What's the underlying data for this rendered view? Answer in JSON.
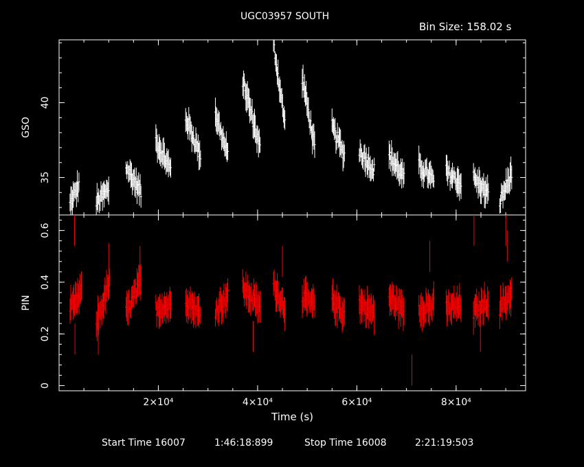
{
  "header": {
    "title": "UGC03957 SOUTH",
    "bin_size": "Bin Size: 158.02 s"
  },
  "footer": {
    "start_label": "Start Time 16007",
    "start_time": "1:46:18:899",
    "stop_label": "Stop Time 16008",
    "stop_time": "2:21:19:503"
  },
  "colors": {
    "background": "#000000",
    "axes": "#ffffff",
    "gso_series": "#ffffff",
    "pin_series": "#ff0000"
  },
  "chart_data": [
    {
      "type": "scatter",
      "name": "GSO",
      "ylabel": "GSO",
      "xlabel": "",
      "xlim": [
        0,
        94000
      ],
      "ylim": [
        32.5,
        44.2
      ],
      "yticks": [
        35,
        40
      ],
      "ytick_labels": [
        "35",
        "40"
      ],
      "xticks": [
        20000,
        40000,
        60000,
        80000
      ],
      "segments": [
        {
          "x": [
            2200,
            4000
          ],
          "y": [
            33.2,
            34.5
          ]
        },
        {
          "x": [
            7500,
            10000
          ],
          "y": [
            33.3,
            34.2
          ]
        },
        {
          "x": [
            13500,
            16500
          ],
          "y": [
            35.7,
            34.0
          ]
        },
        {
          "x": [
            19500,
            22500
          ],
          "y": [
            37.5,
            35.5
          ]
        },
        {
          "x": [
            25500,
            28500
          ],
          "y": [
            39.0,
            36.5
          ]
        },
        {
          "x": [
            31500,
            34000
          ],
          "y": [
            39.3,
            36.4
          ]
        },
        {
          "x": [
            37000,
            40500
          ],
          "y": [
            41.5,
            37.0
          ]
        },
        {
          "x": [
            43200,
            45500
          ],
          "y": [
            44.0,
            38.6
          ]
        },
        {
          "x": [
            49000,
            51500
          ],
          "y": [
            41.7,
            37.0
          ]
        },
        {
          "x": [
            55000,
            57500
          ],
          "y": [
            38.4,
            36.5
          ]
        },
        {
          "x": [
            60500,
            63500
          ],
          "y": [
            36.8,
            35.5
          ]
        },
        {
          "x": [
            66500,
            69500
          ],
          "y": [
            36.5,
            35.0
          ]
        },
        {
          "x": [
            72500,
            75500
          ],
          "y": [
            35.8,
            34.8
          ]
        },
        {
          "x": [
            78000,
            81000
          ],
          "y": [
            35.4,
            34.6
          ]
        },
        {
          "x": [
            83500,
            86500
          ],
          "y": [
            35.0,
            33.8
          ]
        },
        {
          "x": [
            88800,
            91200
          ],
          "y": [
            33.4,
            35.3
          ]
        }
      ]
    },
    {
      "type": "scatter",
      "name": "PIN",
      "ylabel": "PIN",
      "xlabel": "Time (s)",
      "xlim": [
        0,
        94000
      ],
      "ylim": [
        -0.02,
        0.66
      ],
      "yticks": [
        0,
        0.2,
        0.4,
        0.6
      ],
      "ytick_labels": [
        "0",
        "0.2",
        "0.4",
        "0.6"
      ],
      "xticks": [
        20000,
        40000,
        60000,
        80000
      ],
      "xtick_labels": [
        "2×10⁴",
        "4×10⁴",
        "6×10⁴",
        "8×10⁴"
      ],
      "segments": [
        {
          "x": [
            2200,
            4500
          ],
          "y": [
            0.29,
            0.36
          ]
        },
        {
          "x": [
            7500,
            10200
          ],
          "y": [
            0.24,
            0.4
          ]
        },
        {
          "x": [
            13500,
            16500
          ],
          "y": [
            0.28,
            0.4
          ]
        },
        {
          "x": [
            19500,
            22500
          ],
          "y": [
            0.3,
            0.31
          ]
        },
        {
          "x": [
            25500,
            28500
          ],
          "y": [
            0.34,
            0.27
          ]
        },
        {
          "x": [
            31500,
            34000
          ],
          "y": [
            0.29,
            0.35
          ]
        },
        {
          "x": [
            37000,
            40500
          ],
          "y": [
            0.38,
            0.3
          ]
        },
        {
          "x": [
            43200,
            45500
          ],
          "y": [
            0.39,
            0.3
          ]
        },
        {
          "x": [
            49000,
            51500
          ],
          "y": [
            0.34,
            0.31
          ]
        },
        {
          "x": [
            55000,
            57500
          ],
          "y": [
            0.33,
            0.28
          ]
        },
        {
          "x": [
            60500,
            63500
          ],
          "y": [
            0.32,
            0.28
          ]
        },
        {
          "x": [
            66500,
            69500
          ],
          "y": [
            0.34,
            0.29
          ]
        },
        {
          "x": [
            72500,
            75500
          ],
          "y": [
            0.3,
            0.31
          ]
        },
        {
          "x": [
            78000,
            81000
          ],
          "y": [
            0.3,
            0.31
          ]
        },
        {
          "x": [
            83500,
            86500
          ],
          "y": [
            0.28,
            0.33
          ]
        },
        {
          "x": [
            88800,
            91200
          ],
          "y": [
            0.3,
            0.36
          ]
        }
      ],
      "outliers": [
        {
          "x": 3100,
          "y": 0.66
        },
        {
          "x": 3200,
          "y": 0.12
        },
        {
          "x": 7900,
          "y": 0.12
        },
        {
          "x": 10000,
          "y": 0.55
        },
        {
          "x": 16300,
          "y": 0.54
        },
        {
          "x": 39100,
          "y": 0.13
        },
        {
          "x": 45000,
          "y": 0.54
        },
        {
          "x": 71100,
          "y": 0.0
        },
        {
          "x": 74700,
          "y": 0.56
        },
        {
          "x": 83600,
          "y": 0.66
        },
        {
          "x": 84900,
          "y": 0.13
        },
        {
          "x": 90000,
          "y": 0.66
        },
        {
          "x": 90300,
          "y": 0.6
        }
      ]
    }
  ]
}
